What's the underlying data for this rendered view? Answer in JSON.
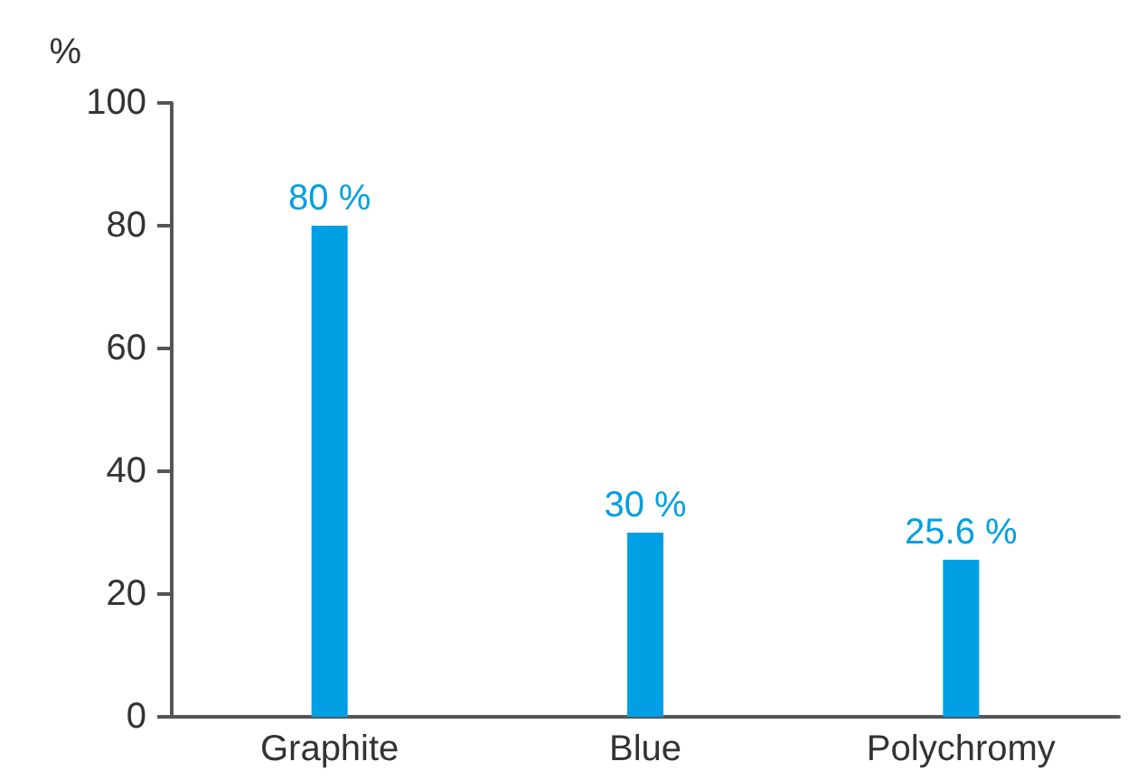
{
  "chart_data": {
    "type": "bar",
    "ylabel": "%",
    "categories": [
      "Graphite",
      "Blue",
      "Polychromy"
    ],
    "values": [
      80,
      30,
      25.6
    ],
    "color": "#009fe3",
    "value_labels": [
      "80 %",
      "30 %",
      "25.6 %"
    ],
    "ylim": [
      0,
      100
    ],
    "yticks": [
      0,
      20,
      40,
      60,
      80,
      100
    ],
    "grid": false
  }
}
